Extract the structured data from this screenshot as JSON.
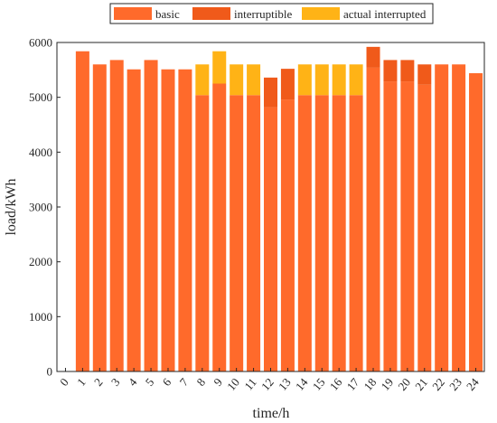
{
  "chart_data": {
    "type": "bar",
    "stacked": true,
    "xlabel": "time/h",
    "ylabel": "load/kWh",
    "ylim": [
      0,
      6000
    ],
    "yticks": [
      0,
      1000,
      2000,
      3000,
      4000,
      5000,
      6000
    ],
    "x_ticks": [
      "0",
      "1",
      "2",
      "3",
      "4",
      "5",
      "6",
      "7",
      "8",
      "9",
      "10",
      "11",
      "12",
      "13",
      "14",
      "15",
      "16",
      "17",
      "18",
      "19",
      "20",
      "21",
      "22",
      "23",
      "24"
    ],
    "categories": [
      "1",
      "2",
      "3",
      "4",
      "5",
      "6",
      "7",
      "8",
      "9",
      "10",
      "11",
      "12",
      "13",
      "14",
      "15",
      "16",
      "17",
      "18",
      "19",
      "20",
      "21",
      "22",
      "23",
      "24"
    ],
    "grid": false,
    "legend_position": "top",
    "colors": {
      "basic": "#ff6a2b",
      "interruptible": "#f05a1a",
      "actual_interrupted": "#ffb316"
    },
    "series": [
      {
        "name": "basic",
        "values": [
          5840,
          5600,
          5680,
          5510,
          5680,
          5510,
          5510,
          5040,
          5250,
          5040,
          5040,
          4820,
          4960,
          5040,
          5040,
          5040,
          5040,
          5540,
          5290,
          5290,
          5230,
          5600,
          5600,
          5440
        ]
      },
      {
        "name": "interruptible",
        "values": [
          0,
          0,
          0,
          0,
          0,
          0,
          0,
          0,
          0,
          0,
          0,
          540,
          560,
          0,
          0,
          0,
          0,
          380,
          390,
          390,
          370,
          0,
          0,
          0
        ]
      },
      {
        "name": "actual interrupted",
        "values": [
          0,
          0,
          0,
          0,
          0,
          0,
          0,
          560,
          590,
          560,
          560,
          0,
          0,
          560,
          560,
          560,
          560,
          0,
          0,
          0,
          0,
          0,
          0,
          0
        ]
      }
    ]
  }
}
